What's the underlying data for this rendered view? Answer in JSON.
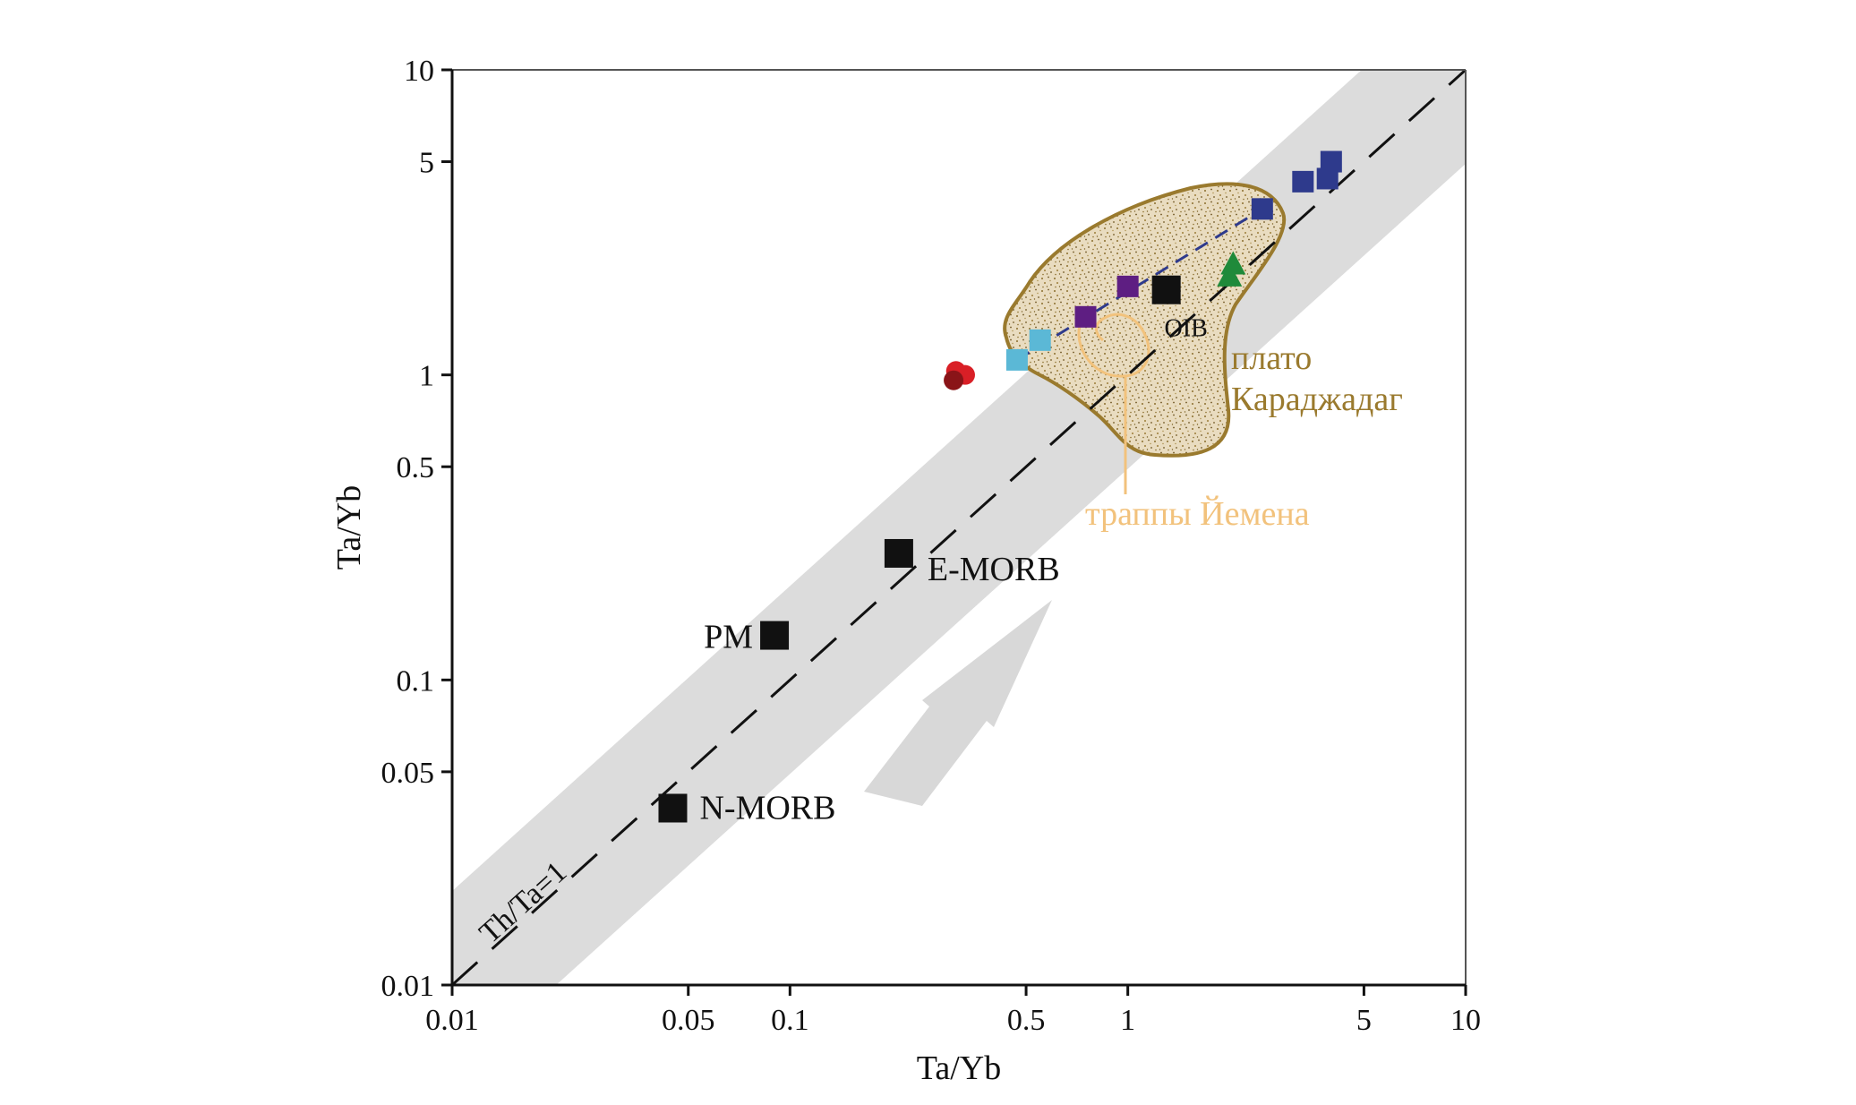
{
  "chart_data": {
    "type": "scatter",
    "title": "",
    "xlabel": "Ta/Yb",
    "ylabel": "Ta/Yb",
    "x_scale": "log",
    "y_scale": "log",
    "xlim": [
      0.01,
      10
    ],
    "ylim": [
      0.01,
      10
    ],
    "x_ticks": [
      "0.01",
      "0.05",
      "0.1",
      "0.5",
      "1",
      "5",
      "10"
    ],
    "y_ticks": [
      "0.01",
      "0.05",
      "0.1",
      "0.5",
      "1",
      "5",
      "10"
    ],
    "grid": false,
    "reference_line": {
      "label": "Th/Ta=1",
      "slope": 1
    },
    "reference_points": [
      {
        "label": "N-MORB",
        "x": 0.045,
        "y": 0.038
      },
      {
        "label": "PM",
        "x": 0.09,
        "y": 0.14
      },
      {
        "label": "E-MORB",
        "x": 0.21,
        "y": 0.26
      },
      {
        "label": "OIB",
        "x": 1.3,
        "y": 1.9
      }
    ],
    "regions": [
      {
        "label": "плато Караджадаг",
        "color": "#9a7a2e"
      },
      {
        "label": "траппы Йемена",
        "color": "#f2c27c"
      }
    ],
    "series": [
      {
        "marker": "square",
        "color": "#2e3a8c",
        "points": [
          [
            2.5,
            3.5
          ],
          [
            3.3,
            4.3
          ],
          [
            3.9,
            4.4
          ],
          [
            4.0,
            5.0
          ]
        ]
      },
      {
        "marker": "square",
        "color": "#5e1e82",
        "points": [
          [
            0.75,
            1.55
          ],
          [
            1.0,
            1.95
          ]
        ]
      },
      {
        "marker": "square",
        "color": "#5bb8d6",
        "points": [
          [
            0.47,
            1.12
          ],
          [
            0.55,
            1.3
          ]
        ]
      },
      {
        "marker": "triangle",
        "color": "#1f8a3a",
        "points": [
          [
            2.0,
            2.1
          ],
          [
            2.05,
            2.3
          ]
        ]
      },
      {
        "marker": "circle",
        "color": "#d91f26",
        "points": [
          [
            0.31,
            1.03
          ],
          [
            0.33,
            1.0
          ],
          [
            0.305,
            0.96
          ]
        ]
      }
    ]
  }
}
